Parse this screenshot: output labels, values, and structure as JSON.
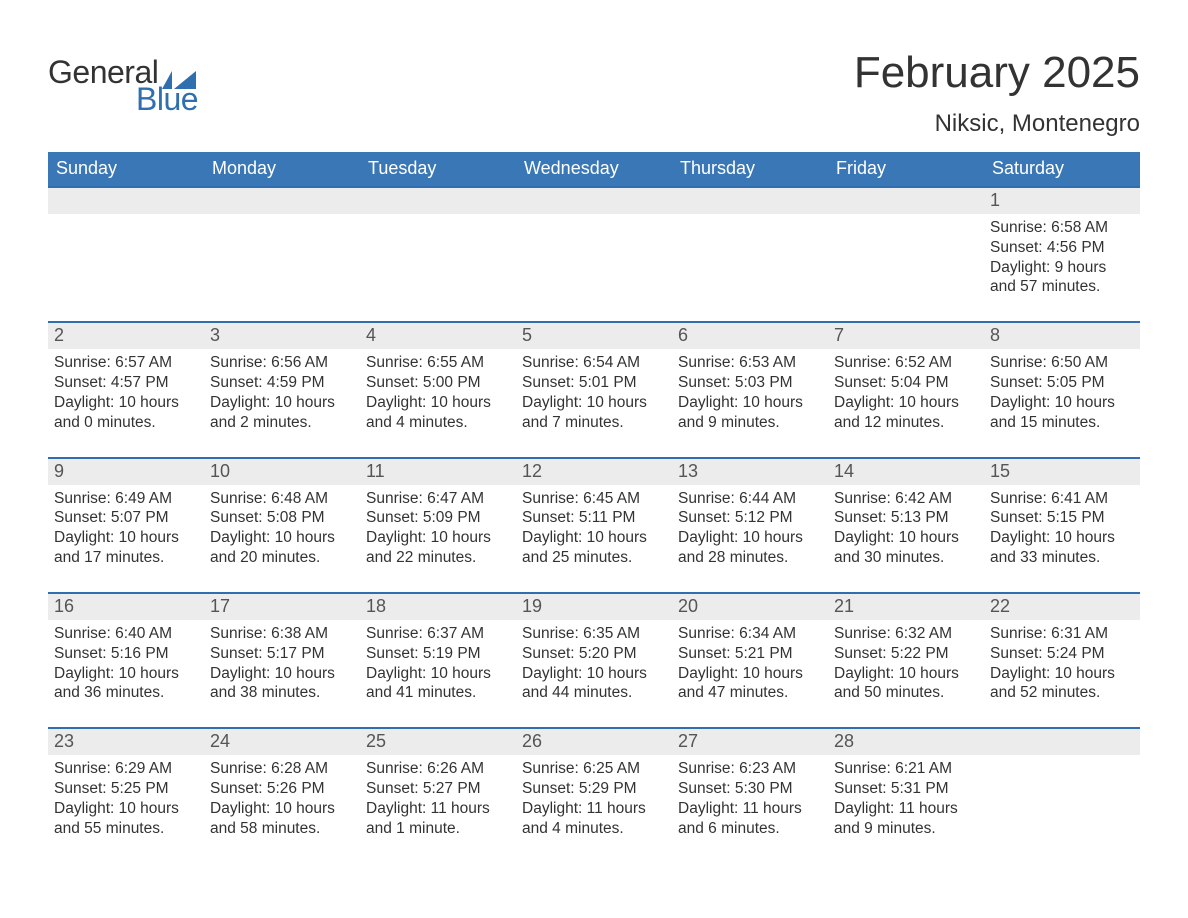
{
  "logo": {
    "word1": "General",
    "word2": "Blue"
  },
  "title": "February 2025",
  "location": "Niksic, Montenegro",
  "colors": {
    "header_bg": "#3a77b7",
    "header_text": "#ffffff",
    "accent_border": "#2f6faf",
    "daynum_bg": "#ececec",
    "body_text": "#333333",
    "logo_blue": "#2f6faf"
  },
  "typography": {
    "title_fontsize": 44,
    "location_fontsize": 24,
    "weekday_fontsize": 18,
    "daynum_fontsize": 18,
    "body_fontsize": 15.5
  },
  "weekdays": [
    "Sunday",
    "Monday",
    "Tuesday",
    "Wednesday",
    "Thursday",
    "Friday",
    "Saturday"
  ],
  "weeks": [
    [
      null,
      null,
      null,
      null,
      null,
      null,
      {
        "n": "1",
        "sunrise": "6:58 AM",
        "sunset": "4:56 PM",
        "daylight": "9 hours and 57 minutes."
      }
    ],
    [
      {
        "n": "2",
        "sunrise": "6:57 AM",
        "sunset": "4:57 PM",
        "daylight": "10 hours and 0 minutes."
      },
      {
        "n": "3",
        "sunrise": "6:56 AM",
        "sunset": "4:59 PM",
        "daylight": "10 hours and 2 minutes."
      },
      {
        "n": "4",
        "sunrise": "6:55 AM",
        "sunset": "5:00 PM",
        "daylight": "10 hours and 4 minutes."
      },
      {
        "n": "5",
        "sunrise": "6:54 AM",
        "sunset": "5:01 PM",
        "daylight": "10 hours and 7 minutes."
      },
      {
        "n": "6",
        "sunrise": "6:53 AM",
        "sunset": "5:03 PM",
        "daylight": "10 hours and 9 minutes."
      },
      {
        "n": "7",
        "sunrise": "6:52 AM",
        "sunset": "5:04 PM",
        "daylight": "10 hours and 12 minutes."
      },
      {
        "n": "8",
        "sunrise": "6:50 AM",
        "sunset": "5:05 PM",
        "daylight": "10 hours and 15 minutes."
      }
    ],
    [
      {
        "n": "9",
        "sunrise": "6:49 AM",
        "sunset": "5:07 PM",
        "daylight": "10 hours and 17 minutes."
      },
      {
        "n": "10",
        "sunrise": "6:48 AM",
        "sunset": "5:08 PM",
        "daylight": "10 hours and 20 minutes."
      },
      {
        "n": "11",
        "sunrise": "6:47 AM",
        "sunset": "5:09 PM",
        "daylight": "10 hours and 22 minutes."
      },
      {
        "n": "12",
        "sunrise": "6:45 AM",
        "sunset": "5:11 PM",
        "daylight": "10 hours and 25 minutes."
      },
      {
        "n": "13",
        "sunrise": "6:44 AM",
        "sunset": "5:12 PM",
        "daylight": "10 hours and 28 minutes."
      },
      {
        "n": "14",
        "sunrise": "6:42 AM",
        "sunset": "5:13 PM",
        "daylight": "10 hours and 30 minutes."
      },
      {
        "n": "15",
        "sunrise": "6:41 AM",
        "sunset": "5:15 PM",
        "daylight": "10 hours and 33 minutes."
      }
    ],
    [
      {
        "n": "16",
        "sunrise": "6:40 AM",
        "sunset": "5:16 PM",
        "daylight": "10 hours and 36 minutes."
      },
      {
        "n": "17",
        "sunrise": "6:38 AM",
        "sunset": "5:17 PM",
        "daylight": "10 hours and 38 minutes."
      },
      {
        "n": "18",
        "sunrise": "6:37 AM",
        "sunset": "5:19 PM",
        "daylight": "10 hours and 41 minutes."
      },
      {
        "n": "19",
        "sunrise": "6:35 AM",
        "sunset": "5:20 PM",
        "daylight": "10 hours and 44 minutes."
      },
      {
        "n": "20",
        "sunrise": "6:34 AM",
        "sunset": "5:21 PM",
        "daylight": "10 hours and 47 minutes."
      },
      {
        "n": "21",
        "sunrise": "6:32 AM",
        "sunset": "5:22 PM",
        "daylight": "10 hours and 50 minutes."
      },
      {
        "n": "22",
        "sunrise": "6:31 AM",
        "sunset": "5:24 PM",
        "daylight": "10 hours and 52 minutes."
      }
    ],
    [
      {
        "n": "23",
        "sunrise": "6:29 AM",
        "sunset": "5:25 PM",
        "daylight": "10 hours and 55 minutes."
      },
      {
        "n": "24",
        "sunrise": "6:28 AM",
        "sunset": "5:26 PM",
        "daylight": "10 hours and 58 minutes."
      },
      {
        "n": "25",
        "sunrise": "6:26 AM",
        "sunset": "5:27 PM",
        "daylight": "11 hours and 1 minute."
      },
      {
        "n": "26",
        "sunrise": "6:25 AM",
        "sunset": "5:29 PM",
        "daylight": "11 hours and 4 minutes."
      },
      {
        "n": "27",
        "sunrise": "6:23 AM",
        "sunset": "5:30 PM",
        "daylight": "11 hours and 6 minutes."
      },
      {
        "n": "28",
        "sunrise": "6:21 AM",
        "sunset": "5:31 PM",
        "daylight": "11 hours and 9 minutes."
      },
      null
    ]
  ],
  "labels": {
    "sunrise": "Sunrise:",
    "sunset": "Sunset:",
    "daylight": "Daylight:"
  }
}
